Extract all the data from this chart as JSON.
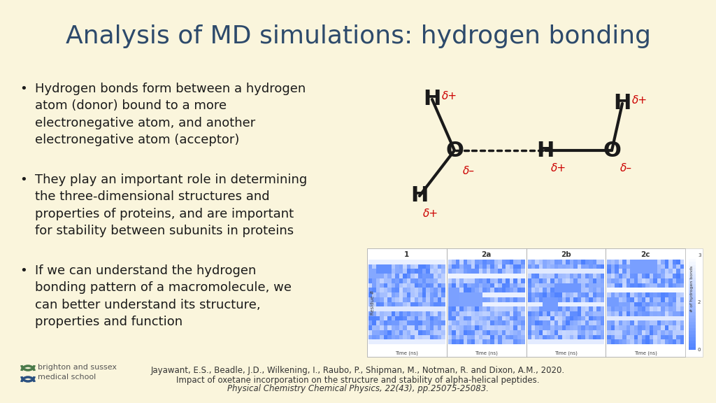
{
  "background_color": "#faf5dc",
  "title": "Analysis of MD simulations: hydrogen bonding",
  "title_color": "#2d4a6b",
  "title_fontsize": 26,
  "bullet_points": [
    "Hydrogen bonds form between a hydrogen\natom (donor) bound to a more\nelectronegative atom, and another\nelectronegative atom (acceptor)",
    "They play an important role in determining\nthe three-dimensional structures and\nproperties of proteins, and are important\nfor stability between subunits in proteins",
    "If we can understand the hydrogen\nbonding pattern of a macromolecule, we\ncan better understand its structure,\nproperties and function"
  ],
  "bullet_color": "#1a1a1a",
  "bullet_fontsize": 13.0,
  "citation_line1": "Jayawant, E.S., Beadle, J.D., Wilkening, I., Raubo, P., Shipman, M., Notman, R. and Dixon, A.M., 2020.",
  "citation_line2": "Impact of oxetane incorporation on the structure and stability of alpha-helical peptides.",
  "citation_line3": "Physical Chemistry Chemical Physics, 22(43), pp.25075-25083.",
  "citation_color": "#333333",
  "citation_fontsize": 8.5,
  "logo_text1": "brighton and sussex",
  "logo_text2": "medical school",
  "logo_green": "#4a7a4a",
  "logo_blue": "#2a5080",
  "logo_text_color": "#555555",
  "delta_color": "#cc0000",
  "atom_color": "#1a1a1a",
  "panel_labels": [
    "1",
    "2a",
    "2b",
    "2c"
  ],
  "panel_bg": "#ffffff",
  "hbond_dots": 11
}
